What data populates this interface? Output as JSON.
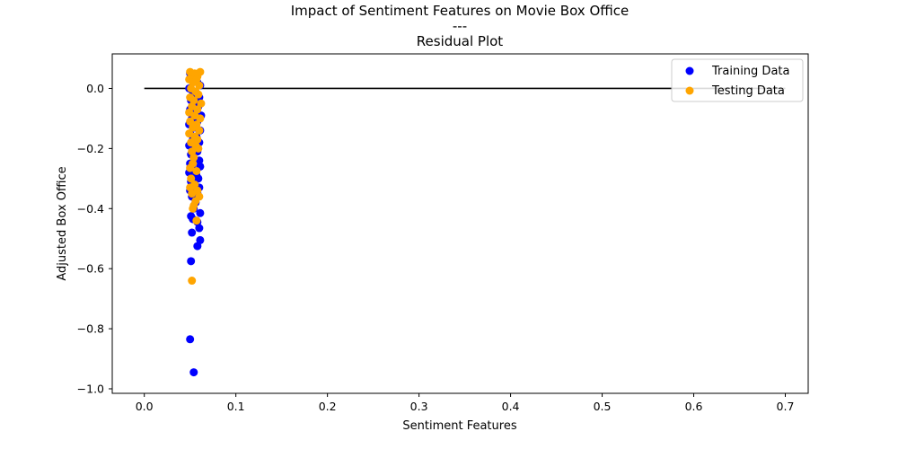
{
  "chart_data": {
    "type": "scatter",
    "title_lines": [
      "Impact of Sentiment Features on Movie Box Office",
      "---",
      "Residual Plot"
    ],
    "xlabel": "Sentiment Features",
    "ylabel": "Adjusted Box Office",
    "xlim": [
      -0.035,
      0.725
    ],
    "ylim": [
      -1.015,
      0.115
    ],
    "x_ticks": [
      0.0,
      0.1,
      0.2,
      0.3,
      0.4,
      0.5,
      0.6,
      0.7
    ],
    "x_tick_labels": [
      "0.0",
      "0.1",
      "0.2",
      "0.3",
      "0.4",
      "0.5",
      "0.6",
      "0.7"
    ],
    "y_ticks": [
      0.0,
      -0.2,
      -0.4,
      -0.6,
      -0.8,
      -1.0
    ],
    "y_tick_labels": [
      "0.0",
      "−0.2",
      "−0.4",
      "−0.6",
      "−0.8",
      "−1.0"
    ],
    "grid": false,
    "legend_position": "top-right",
    "hline": {
      "y": 0.0,
      "xmin": 0.0,
      "xmax": 0.7,
      "color": "#000000"
    },
    "series": [
      {
        "name": "Training Data",
        "color": "#0000ff",
        "points": [
          [
            0.05,
            0.05
          ],
          [
            0.052,
            0.04
          ],
          [
            0.055,
            0.03
          ],
          [
            0.058,
            0.02
          ],
          [
            0.061,
            0.01
          ],
          [
            0.049,
            0.0
          ],
          [
            0.053,
            -0.01
          ],
          [
            0.057,
            -0.02
          ],
          [
            0.06,
            -0.03
          ],
          [
            0.051,
            -0.04
          ],
          [
            0.056,
            -0.05
          ],
          [
            0.059,
            -0.06
          ],
          [
            0.05,
            -0.07
          ],
          [
            0.054,
            -0.08
          ],
          [
            0.062,
            -0.09
          ],
          [
            0.052,
            -0.1
          ],
          [
            0.058,
            -0.11
          ],
          [
            0.049,
            -0.12
          ],
          [
            0.055,
            -0.13
          ],
          [
            0.061,
            -0.14
          ],
          [
            0.05,
            -0.15
          ],
          [
            0.057,
            -0.16
          ],
          [
            0.053,
            -0.17
          ],
          [
            0.06,
            -0.18
          ],
          [
            0.049,
            -0.19
          ],
          [
            0.055,
            -0.2
          ],
          [
            0.058,
            -0.21
          ],
          [
            0.051,
            -0.22
          ],
          [
            0.06,
            -0.24
          ],
          [
            0.05,
            -0.25
          ],
          [
            0.061,
            -0.26
          ],
          [
            0.053,
            -0.27
          ],
          [
            0.049,
            -0.28
          ],
          [
            0.057,
            -0.29
          ],
          [
            0.059,
            -0.3
          ],
          [
            0.051,
            -0.31
          ],
          [
            0.055,
            -0.32
          ],
          [
            0.06,
            -0.33
          ],
          [
            0.05,
            -0.34
          ],
          [
            0.058,
            -0.35
          ],
          [
            0.052,
            -0.36
          ],
          [
            0.056,
            -0.38
          ],
          [
            0.054,
            -0.4
          ],
          [
            0.061,
            -0.415
          ],
          [
            0.051,
            -0.425
          ],
          [
            0.053,
            -0.435
          ],
          [
            0.058,
            -0.445
          ],
          [
            0.06,
            -0.465
          ],
          [
            0.052,
            -0.48
          ],
          [
            0.061,
            -0.505
          ],
          [
            0.058,
            -0.525
          ],
          [
            0.051,
            -0.575
          ],
          [
            0.05,
            -0.835
          ],
          [
            0.054,
            -0.945
          ]
        ]
      },
      {
        "name": "Testing Data",
        "color": "#ffa500",
        "points": [
          [
            0.05,
            0.055
          ],
          [
            0.052,
            0.045
          ],
          [
            0.055,
            0.05
          ],
          [
            0.058,
            0.04
          ],
          [
            0.061,
            0.055
          ],
          [
            0.049,
            0.03
          ],
          [
            0.053,
            0.02
          ],
          [
            0.057,
            0.03
          ],
          [
            0.06,
            0.01
          ],
          [
            0.051,
            0.0
          ],
          [
            0.056,
            -0.01
          ],
          [
            0.059,
            -0.02
          ],
          [
            0.05,
            -0.03
          ],
          [
            0.054,
            -0.04
          ],
          [
            0.062,
            -0.05
          ],
          [
            0.052,
            -0.06
          ],
          [
            0.058,
            -0.07
          ],
          [
            0.049,
            -0.08
          ],
          [
            0.055,
            -0.09
          ],
          [
            0.061,
            -0.1
          ],
          [
            0.05,
            -0.11
          ],
          [
            0.057,
            -0.12
          ],
          [
            0.053,
            -0.13
          ],
          [
            0.06,
            -0.14
          ],
          [
            0.049,
            -0.15
          ],
          [
            0.055,
            -0.16
          ],
          [
            0.058,
            -0.17
          ],
          [
            0.051,
            -0.18
          ],
          [
            0.056,
            -0.19
          ],
          [
            0.059,
            -0.2
          ],
          [
            0.052,
            -0.21
          ],
          [
            0.054,
            -0.23
          ],
          [
            0.053,
            -0.25
          ],
          [
            0.05,
            -0.265
          ],
          [
            0.057,
            -0.275
          ],
          [
            0.051,
            -0.3
          ],
          [
            0.055,
            -0.32
          ],
          [
            0.05,
            -0.33
          ],
          [
            0.058,
            -0.34
          ],
          [
            0.052,
            -0.35
          ],
          [
            0.06,
            -0.36
          ],
          [
            0.056,
            -0.375
          ],
          [
            0.054,
            -0.39
          ],
          [
            0.053,
            -0.4
          ],
          [
            0.057,
            -0.44
          ],
          [
            0.052,
            -0.64
          ]
        ]
      }
    ]
  }
}
